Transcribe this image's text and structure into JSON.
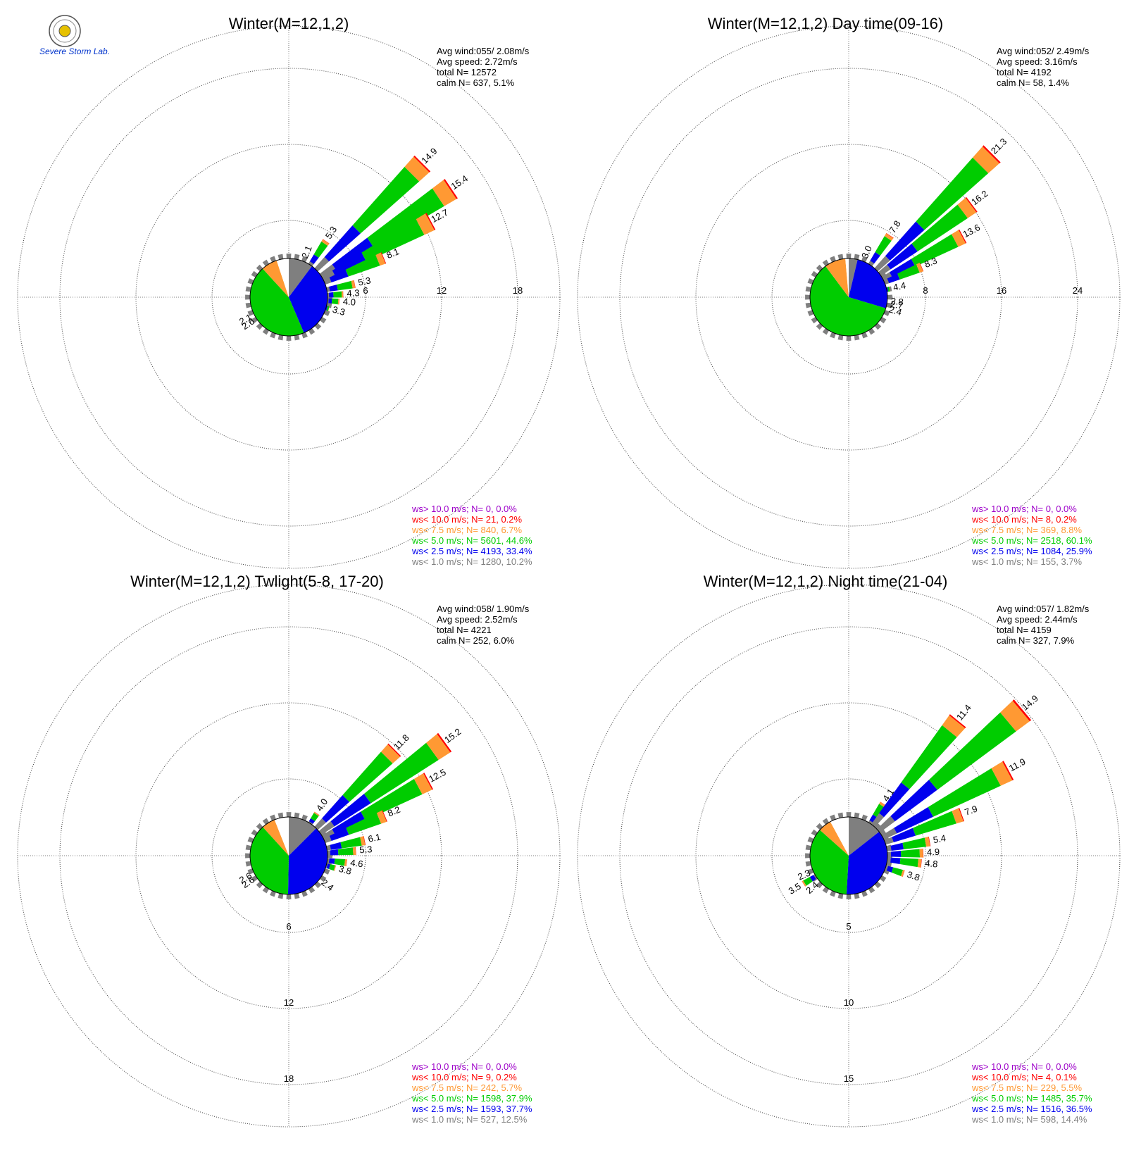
{
  "logo": {
    "lab_text": "Severe Storm Lab."
  },
  "legend_colors": {
    "c10plus": "#9d00c9",
    "c10": "#ff0000",
    "c75": "#ff9933",
    "c50": "#00cc00",
    "c25": "#0000ee",
    "c10calm": "#7f7f7f"
  },
  "chart_data": [
    {
      "type": "polar-bar",
      "title": "Winter(M=12,1,2)",
      "stats": {
        "avg_wind": "Avg wind:055/ 2.08m/s",
        "avg_speed": "Avg speed: 2.72m/s",
        "total": "total N=       12572",
        "calm": "calm N=     637,   5.1%"
      },
      "rings": [
        6,
        12,
        18
      ],
      "ring_labels_at": "east",
      "pie": {
        "gray": 10.2,
        "blue": 33.4,
        "green": 44.6,
        "orange": 6.7,
        "white": 5.1
      },
      "petals": [
        {
          "dir": 22.5,
          "value": 2.1,
          "label": "2.1"
        },
        {
          "dir": 33.75,
          "value": 5.3,
          "label": "5.3"
        },
        {
          "dir": 45,
          "value": 14.9,
          "label": "14.9"
        },
        {
          "dir": 56.25,
          "value": 15.4,
          "label": "15.4"
        },
        {
          "dir": 61.9,
          "value": 12.7,
          "label": "12.7"
        },
        {
          "dir": 67.5,
          "value": 8.1,
          "label": "8.1"
        },
        {
          "dir": 78.75,
          "value": 5.3,
          "label": "5.3"
        },
        {
          "dir": 87,
          "value": 4.3,
          "label": "4.3"
        },
        {
          "dir": 95,
          "value": 4.0,
          "label": "4.0"
        },
        {
          "dir": 106,
          "value": 3.3,
          "label": "3.3"
        },
        {
          "dir": 236,
          "value": 2.6,
          "label": "2.6"
        },
        {
          "dir": 242,
          "value": 2.1,
          "label": "2.1"
        }
      ],
      "legend": [
        {
          "text": "ws> 10.0 m/s; N=     0,  0.0%",
          "color": "#9d00c9"
        },
        {
          "text": "ws< 10.0 m/s; N=    21,  0.2%",
          "color": "#ff0000"
        },
        {
          "text": "ws<  7.5 m/s; N=   840,  6.7%",
          "color": "#ff9933"
        },
        {
          "text": "ws<  5.0 m/s; N=  5601, 44.6%",
          "color": "#00cc00"
        },
        {
          "text": "ws<  2.5 m/s; N=  4193, 33.4%",
          "color": "#0000ee"
        },
        {
          "text": "ws<  1.0 m/s; N=  1280, 10.2%",
          "color": "#7f7f7f"
        }
      ]
    },
    {
      "type": "polar-bar",
      "title": "Winter(M=12,1,2) Day time(09-16)",
      "stats": {
        "avg_wind": "Avg wind:052/ 2.49m/s",
        "avg_speed": "Avg speed: 3.16m/s",
        "total": "total N=       4192",
        "calm": "calm N=     58,   1.4%"
      },
      "rings": [
        8,
        16,
        24
      ],
      "ring_labels_at": "east",
      "pie": {
        "gray": 3.7,
        "blue": 25.9,
        "green": 60.1,
        "orange": 8.8,
        "white": 1.4
      },
      "petals": [
        {
          "dir": 22.5,
          "value": 3.0,
          "label": "3.0"
        },
        {
          "dir": 33.75,
          "value": 7.8,
          "label": "7.8"
        },
        {
          "dir": 45,
          "value": 21.3,
          "label": "21.3"
        },
        {
          "dir": 53,
          "value": 16.2,
          "label": "16.2"
        },
        {
          "dir": 61.9,
          "value": 13.6,
          "label": "13.6"
        },
        {
          "dir": 67.5,
          "value": 8.3,
          "label": "8.3"
        },
        {
          "dir": 78.75,
          "value": 4.4,
          "label": "4.4"
        },
        {
          "dir": 96,
          "value": 2.8,
          "label": "2.8"
        },
        {
          "dir": 100,
          "value": 2.7,
          "label": "2.7"
        },
        {
          "dir": 107,
          "value": 2.4,
          "label": "2.4"
        }
      ],
      "legend": [
        {
          "text": "ws> 10.0 m/s; N=     0,  0.0%",
          "color": "#9d00c9"
        },
        {
          "text": "ws< 10.0 m/s; N=     8,  0.2%",
          "color": "#ff0000"
        },
        {
          "text": "ws<  7.5 m/s; N=   369,  8.8%",
          "color": "#ff9933"
        },
        {
          "text": "ws<  5.0 m/s; N=  2518, 60.1%",
          "color": "#00cc00"
        },
        {
          "text": "ws<  2.5 m/s; N=  1084, 25.9%",
          "color": "#0000ee"
        },
        {
          "text": "ws<  1.0 m/s; N=   155,  3.7%",
          "color": "#7f7f7f"
        }
      ]
    },
    {
      "type": "polar-bar",
      "title": "Winter(M=12,1,2) Twlight(5-8, 17-20)",
      "stats": {
        "avg_wind": "Avg wind:058/ 1.90m/s",
        "avg_speed": "Avg speed: 2.52m/s",
        "total": "total N=       4221",
        "calm": "calm N=     252,   6.0%"
      },
      "rings": [
        6,
        12,
        18
      ],
      "ring_labels_at": "south",
      "pie": {
        "gray": 12.5,
        "blue": 37.7,
        "green": 37.9,
        "orange": 5.7,
        "white": 6.0
      },
      "petals": [
        {
          "dir": 33.75,
          "value": 4.0,
          "label": "4.0"
        },
        {
          "dir": 45,
          "value": 11.8,
          "label": "11.8"
        },
        {
          "dir": 54,
          "value": 15.2,
          "label": "15.2"
        },
        {
          "dir": 61.9,
          "value": 12.5,
          "label": "12.5"
        },
        {
          "dir": 67.5,
          "value": 8.2,
          "label": "8.2"
        },
        {
          "dir": 78.75,
          "value": 6.1,
          "label": "6.1"
        },
        {
          "dir": 86,
          "value": 5.3,
          "label": "5.3"
        },
        {
          "dir": 97,
          "value": 4.6,
          "label": "4.6"
        },
        {
          "dir": 105,
          "value": 3.8,
          "label": "3.8"
        },
        {
          "dir": 128,
          "value": 2.4,
          "label": "2.4"
        },
        {
          "dir": 236,
          "value": 2.6,
          "label": "2.6"
        },
        {
          "dir": 242,
          "value": 2.6,
          "label": "2.6"
        }
      ],
      "legend": [
        {
          "text": "ws> 10.0 m/s; N=     0,  0.0%",
          "color": "#9d00c9"
        },
        {
          "text": "ws< 10.0 m/s; N=     9,  0.2%",
          "color": "#ff0000"
        },
        {
          "text": "ws<  7.5 m/s; N=   242,  5.7%",
          "color": "#ff9933"
        },
        {
          "text": "ws<  5.0 m/s; N=  1598, 37.9%",
          "color": "#00cc00"
        },
        {
          "text": "ws<  2.5 m/s; N=  1593, 37.7%",
          "color": "#0000ee"
        },
        {
          "text": "ws<  1.0 m/s; N=   527, 12.5%",
          "color": "#7f7f7f"
        }
      ]
    },
    {
      "type": "polar-bar",
      "title": "Winter(M=12,1,2) Night time(21-04)",
      "stats": {
        "avg_wind": "Avg wind:057/ 1.82m/s",
        "avg_speed": "Avg speed: 2.44m/s",
        "total": "total N=       4159",
        "calm": "calm N=     327,   7.9%"
      },
      "rings": [
        5,
        10,
        15
      ],
      "ring_labels_at": "south",
      "pie": {
        "gray": 14.4,
        "blue": 36.5,
        "green": 35.7,
        "orange": 5.5,
        "white": 7.9
      },
      "petals": [
        {
          "dir": 33.75,
          "value": 4.1,
          "label": "4.1"
        },
        {
          "dir": 39,
          "value": 11.4,
          "label": "11.4"
        },
        {
          "dir": 50,
          "value": 14.9,
          "label": "14.9"
        },
        {
          "dir": 61.9,
          "value": 11.9,
          "label": "11.9"
        },
        {
          "dir": 70,
          "value": 7.9,
          "label": "7.9"
        },
        {
          "dir": 80,
          "value": 5.4,
          "label": "5.4"
        },
        {
          "dir": 88,
          "value": 4.9,
          "label": "4.9"
        },
        {
          "dir": 96,
          "value": 4.8,
          "label": "4.8"
        },
        {
          "dir": 108,
          "value": 3.8,
          "label": "3.8"
        },
        {
          "dir": 228,
          "value": 2.4,
          "label": "2.4"
        },
        {
          "dir": 238,
          "value": 3.5,
          "label": "3.5"
        },
        {
          "dir": 246,
          "value": 2.3,
          "label": "2.3"
        }
      ],
      "legend": [
        {
          "text": "ws> 10.0 m/s; N=     0,  0.0%",
          "color": "#9d00c9"
        },
        {
          "text": "ws< 10.0 m/s; N=     4,  0.1%",
          "color": "#ff0000"
        },
        {
          "text": "ws<  7.5 m/s; N=   229,  5.5%",
          "color": "#ff9933"
        },
        {
          "text": "ws<  5.0 m/s; N=  1485, 35.7%",
          "color": "#00cc00"
        },
        {
          "text": "ws<  2.5 m/s; N=  1516, 36.5%",
          "color": "#0000ee"
        },
        {
          "text": "ws<  1.0 m/s; N=   598, 14.4%",
          "color": "#7f7f7f"
        }
      ]
    }
  ]
}
